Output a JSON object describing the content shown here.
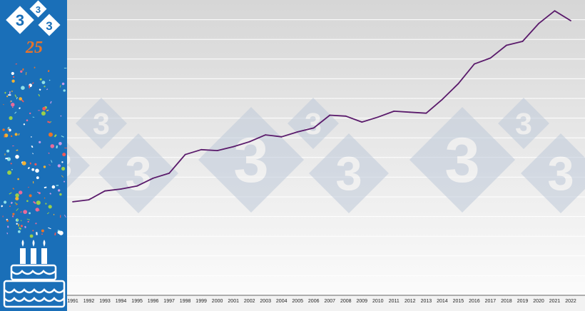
{
  "brand": {
    "logo_digits": [
      "3",
      "3",
      "3"
    ],
    "anniversary": "25",
    "sidebar_color": "#1a6fb8",
    "anniversary_color": "#e8732a",
    "icons": [
      "logo-333-icon",
      "confetti-icon",
      "birthday-cake-icon"
    ]
  },
  "watermark": {
    "digit": "3",
    "color": "#bfcada"
  },
  "chart_data": {
    "type": "line",
    "title": "",
    "xlabel": "",
    "ylabel": "",
    "x": [
      "1991",
      "1992",
      "1993",
      "1994",
      "1995",
      "1996",
      "1997",
      "1998",
      "1999",
      "2000",
      "2001",
      "2002",
      "2003",
      "2004",
      "2005",
      "2006",
      "2007",
      "2008",
      "2009",
      "2010",
      "2011",
      "2012",
      "2013",
      "2014",
      "2015",
      "2016",
      "2017",
      "2018",
      "2019",
      "2020",
      "2021",
      "2022"
    ],
    "series": [
      {
        "name": "",
        "color": "#5a1a6b",
        "values": [
          47.5,
          48.5,
          53.0,
          54.0,
          55.5,
          59.5,
          62.0,
          71.5,
          74.0,
          73.5,
          75.5,
          78.0,
          81.5,
          80.5,
          83.0,
          85.0,
          91.5,
          91.0,
          88.0,
          90.5,
          93.5,
          93.0,
          92.5,
          99.5,
          107.5,
          117.5,
          120.5,
          127.0,
          129.0,
          138.0,
          144.5,
          139.5
        ]
      }
    ],
    "ylim": [
      0,
      150
    ],
    "y_tick_labels_shown": false,
    "grid": true,
    "legend": "none"
  }
}
